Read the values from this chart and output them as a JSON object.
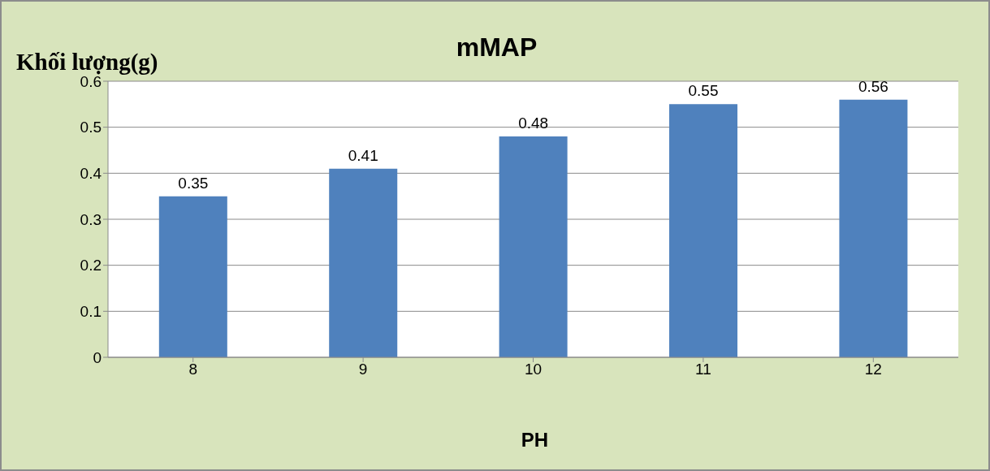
{
  "chart_data": {
    "type": "bar",
    "title": "mMAP",
    "xlabel": "PH",
    "ylabel": "Khối lượng(g)",
    "categories": [
      "8",
      "9",
      "10",
      "11",
      "12"
    ],
    "values": [
      0.35,
      0.41,
      0.48,
      0.55,
      0.56
    ],
    "color": "#4f81bd",
    "ylim": [
      0,
      0.6
    ],
    "yticks": [
      0,
      0.1,
      0.2,
      0.3,
      0.4,
      0.5,
      0.6
    ],
    "grid": "y",
    "data_labels": true
  }
}
